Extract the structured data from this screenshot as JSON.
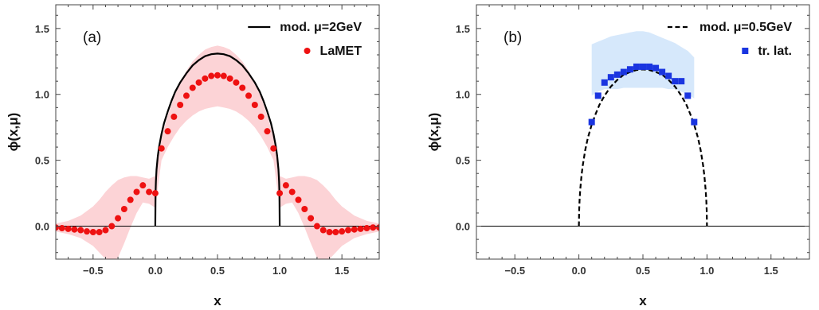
{
  "chart_data": [
    {
      "type": "line",
      "panel_label": "(a)",
      "xlabel": "x",
      "ylabel": "ϕ(x,μ)",
      "xlim": [
        -0.8,
        1.8
      ],
      "ylim": [
        -0.25,
        1.68
      ],
      "xticks": [
        -0.5,
        0.0,
        0.5,
        1.0,
        1.5
      ],
      "xtick_labels": [
        "−0.5",
        "0.0",
        "0.5",
        "1.0",
        "1.5"
      ],
      "yticks": [
        0.0,
        0.5,
        1.0,
        1.5
      ],
      "ytick_labels": [
        "0.0",
        "0.5",
        "1.0",
        "1.5"
      ],
      "legend_position": "top-right",
      "zero_line": true,
      "series": [
        {
          "name": "mod. μ=2GeV",
          "kind": "line",
          "style": "solid",
          "color": "#000000",
          "x": [
            0.0,
            0.002,
            0.005,
            0.01,
            0.02,
            0.03,
            0.05,
            0.07,
            0.1,
            0.13,
            0.16,
            0.2,
            0.25,
            0.3,
            0.35,
            0.4,
            0.45,
            0.5,
            0.55,
            0.6,
            0.65,
            0.7,
            0.75,
            0.8,
            0.84,
            0.87,
            0.9,
            0.93,
            0.95,
            0.97,
            0.98,
            0.99,
            0.995,
            0.998,
            1.0
          ],
          "y": [
            0.0,
            0.25,
            0.34,
            0.43,
            0.53,
            0.6,
            0.7,
            0.78,
            0.87,
            0.95,
            1.02,
            1.09,
            1.16,
            1.22,
            1.26,
            1.29,
            1.305,
            1.31,
            1.305,
            1.29,
            1.26,
            1.22,
            1.16,
            1.09,
            1.02,
            0.95,
            0.87,
            0.78,
            0.7,
            0.6,
            0.53,
            0.43,
            0.34,
            0.25,
            0.0
          ]
        },
        {
          "name": "LaMET",
          "kind": "scatter",
          "marker": "circle",
          "color": "#ee1111",
          "x": [
            -0.8,
            -0.75,
            -0.7,
            -0.65,
            -0.6,
            -0.55,
            -0.5,
            -0.45,
            -0.4,
            -0.35,
            -0.3,
            -0.25,
            -0.2,
            -0.15,
            -0.1,
            -0.05,
            0.0,
            0.05,
            0.1,
            0.15,
            0.2,
            0.25,
            0.3,
            0.35,
            0.4,
            0.45,
            0.5,
            0.55,
            0.6,
            0.65,
            0.7,
            0.75,
            0.8,
            0.85,
            0.9,
            0.95,
            1.0,
            1.05,
            1.1,
            1.15,
            1.2,
            1.25,
            1.3,
            1.35,
            1.4,
            1.45,
            1.5,
            1.55,
            1.6,
            1.65,
            1.7,
            1.75,
            1.8
          ],
          "y": [
            -0.01,
            -0.015,
            -0.02,
            -0.025,
            -0.03,
            -0.04,
            -0.045,
            -0.045,
            -0.03,
            0.0,
            0.06,
            0.13,
            0.2,
            0.26,
            0.31,
            0.26,
            0.25,
            0.59,
            0.72,
            0.83,
            0.92,
            0.99,
            1.05,
            1.09,
            1.12,
            1.14,
            1.145,
            1.14,
            1.12,
            1.09,
            1.05,
            0.99,
            0.92,
            0.83,
            0.72,
            0.59,
            0.25,
            0.31,
            0.26,
            0.2,
            0.13,
            0.06,
            0.0,
            -0.03,
            -0.045,
            -0.045,
            -0.04,
            -0.03,
            -0.025,
            -0.02,
            -0.015,
            -0.01,
            -0.01
          ]
        }
      ],
      "bands": [
        {
          "color": "#fcd3d6",
          "x": [
            -0.8,
            -0.7,
            -0.6,
            -0.5,
            -0.45,
            -0.4,
            -0.35,
            -0.3,
            -0.25,
            -0.2,
            -0.15,
            -0.1,
            -0.05,
            0.0,
            0.05,
            0.1,
            0.15,
            0.2,
            0.25,
            0.3,
            0.35,
            0.4,
            0.45,
            0.5,
            0.55,
            0.6,
            0.65,
            0.7,
            0.75,
            0.8,
            0.85,
            0.9,
            0.95,
            1.0,
            1.05,
            1.1,
            1.15,
            1.2,
            1.25,
            1.3,
            1.35,
            1.4,
            1.45,
            1.5,
            1.6,
            1.7,
            1.8
          ],
          "upper": [
            0.02,
            0.04,
            0.08,
            0.15,
            0.2,
            0.26,
            0.31,
            0.35,
            0.37,
            0.38,
            0.38,
            0.37,
            0.36,
            0.38,
            0.68,
            0.84,
            0.98,
            1.09,
            1.18,
            1.25,
            1.3,
            1.34,
            1.36,
            1.37,
            1.36,
            1.34,
            1.3,
            1.25,
            1.18,
            1.09,
            0.98,
            0.84,
            0.68,
            0.38,
            0.36,
            0.37,
            0.38,
            0.38,
            0.37,
            0.35,
            0.31,
            0.26,
            0.2,
            0.15,
            0.08,
            0.04,
            0.02
          ],
          "lower": [
            -0.04,
            -0.06,
            -0.09,
            -0.15,
            -0.2,
            -0.25,
            -0.27,
            -0.24,
            -0.13,
            -0.01,
            0.1,
            0.18,
            0.17,
            0.14,
            0.5,
            0.6,
            0.68,
            0.75,
            0.8,
            0.84,
            0.87,
            0.89,
            0.9,
            0.91,
            0.9,
            0.89,
            0.87,
            0.84,
            0.8,
            0.75,
            0.68,
            0.6,
            0.5,
            0.14,
            0.17,
            0.18,
            0.1,
            -0.01,
            -0.13,
            -0.24,
            -0.27,
            -0.25,
            -0.2,
            -0.15,
            -0.09,
            -0.06,
            -0.04
          ]
        }
      ]
    },
    {
      "type": "line",
      "panel_label": "(b)",
      "xlabel": "x",
      "ylabel": "ϕ(x,μ)",
      "xlim": [
        -0.8,
        1.8
      ],
      "ylim": [
        -0.25,
        1.68
      ],
      "xticks": [
        -0.5,
        0.0,
        0.5,
        1.0,
        1.5
      ],
      "xtick_labels": [
        "−0.5",
        "0.0",
        "0.5",
        "1.0",
        "1.5"
      ],
      "yticks": [
        0.0,
        0.5,
        1.0,
        1.5
      ],
      "ytick_labels": [
        "0.0",
        "0.5",
        "1.0",
        "1.5"
      ],
      "legend_position": "top-right",
      "zero_line": true,
      "series": [
        {
          "name": "mod. μ=0.5GeV",
          "kind": "line",
          "style": "dashed",
          "color": "#000000",
          "x": [
            0.0,
            0.002,
            0.005,
            0.01,
            0.02,
            0.03,
            0.05,
            0.07,
            0.1,
            0.13,
            0.16,
            0.2,
            0.25,
            0.3,
            0.35,
            0.4,
            0.45,
            0.5,
            0.55,
            0.6,
            0.65,
            0.7,
            0.75,
            0.8,
            0.84,
            0.87,
            0.9,
            0.93,
            0.95,
            0.97,
            0.98,
            0.99,
            0.995,
            0.998,
            1.0
          ],
          "y": [
            0.0,
            0.12,
            0.19,
            0.27,
            0.38,
            0.46,
            0.58,
            0.67,
            0.77,
            0.85,
            0.92,
            0.99,
            1.06,
            1.11,
            1.15,
            1.17,
            1.185,
            1.19,
            1.185,
            1.17,
            1.15,
            1.11,
            1.06,
            0.99,
            0.92,
            0.85,
            0.77,
            0.67,
            0.58,
            0.46,
            0.38,
            0.27,
            0.19,
            0.12,
            0.0
          ]
        },
        {
          "name": "tr. lat.",
          "kind": "scatter",
          "marker": "square",
          "color": "#1a35e0",
          "x": [
            0.1,
            0.15,
            0.2,
            0.25,
            0.3,
            0.35,
            0.4,
            0.45,
            0.5,
            0.55,
            0.6,
            0.65,
            0.7,
            0.75,
            0.8,
            0.85,
            0.9
          ],
          "y": [
            0.79,
            0.99,
            1.09,
            1.13,
            1.15,
            1.17,
            1.19,
            1.21,
            1.21,
            1.21,
            1.2,
            1.17,
            1.14,
            1.1,
            1.1,
            0.99,
            0.79
          ]
        }
      ],
      "bands": [
        {
          "color": "#d6e8fb",
          "x": [
            0.1,
            0.15,
            0.2,
            0.25,
            0.3,
            0.35,
            0.4,
            0.45,
            0.5,
            0.55,
            0.6,
            0.65,
            0.7,
            0.75,
            0.8,
            0.85,
            0.9
          ],
          "upper": [
            1.38,
            1.4,
            1.42,
            1.44,
            1.45,
            1.46,
            1.47,
            1.48,
            1.48,
            1.47,
            1.45,
            1.43,
            1.41,
            1.39,
            1.36,
            1.33,
            1.28
          ],
          "lower": [
            0.99,
            1.02,
            1.04,
            1.04,
            1.04,
            1.05,
            1.05,
            1.05,
            1.05,
            1.05,
            1.05,
            1.05,
            1.04,
            1.04,
            1.02,
            1.0,
            0.97
          ]
        }
      ]
    }
  ]
}
